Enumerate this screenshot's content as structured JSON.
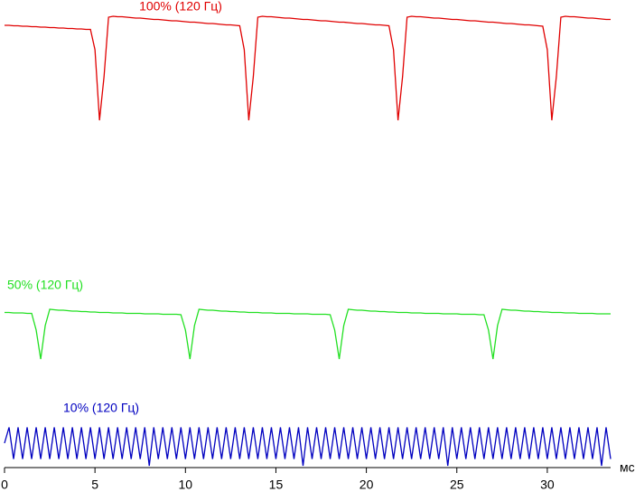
{
  "chart_data": {
    "type": "line",
    "x_unit": "мс",
    "x": [
      0,
      0.25,
      0.5,
      0.75,
      1,
      1.25,
      1.5,
      1.75,
      2,
      2.25,
      2.5,
      2.75,
      3,
      3.25,
      3.5,
      3.75,
      4,
      4.25,
      4.5,
      4.75,
      5,
      5.25,
      5.5,
      5.75,
      6,
      6.25,
      6.5,
      6.75,
      7,
      7.25,
      7.5,
      7.75,
      8,
      8.25,
      8.5,
      8.75,
      9,
      9.25,
      9.5,
      9.75,
      10,
      10.25,
      10.5,
      10.75,
      11,
      11.25,
      11.5,
      11.75,
      12,
      12.25,
      12.5,
      12.75,
      13,
      13.25,
      13.5,
      13.75,
      14,
      14.25,
      14.5,
      14.75,
      15,
      15.25,
      15.5,
      15.75,
      16,
      16.25,
      16.5,
      16.75,
      17,
      17.25,
      17.5,
      17.75,
      18,
      18.25,
      18.5,
      18.75,
      19,
      19.25,
      19.5,
      19.75,
      20,
      20.25,
      20.5,
      20.75,
      21,
      21.25,
      21.5,
      21.75,
      22,
      22.25,
      22.5,
      22.75,
      23,
      23.25,
      23.5,
      23.75,
      24,
      24.25,
      24.5,
      24.75,
      25,
      25.25,
      25.5,
      25.75,
      26,
      26.25,
      26.5,
      26.75,
      27,
      27.25,
      27.5,
      27.75,
      28,
      28.25,
      28.5,
      28.75,
      29,
      29.25,
      29.5,
      29.75,
      30,
      30.25,
      30.5,
      30.75,
      31,
      31.25,
      31.5,
      31.75,
      32,
      32.25,
      32.5,
      32.75,
      33,
      33.25,
      33.5
    ],
    "series": [
      {
        "name": "100% (120 Гц)",
        "color": "#e00000",
        "values": [
          97.4,
          97.4,
          97.3,
          97.3,
          97.2,
          97.2,
          97.1,
          97.1,
          97.0,
          97.0,
          96.9,
          96.9,
          96.8,
          96.8,
          96.7,
          96.7,
          96.6,
          96.6,
          96.5,
          96.5,
          92,
          76.4,
          86,
          99.2,
          99.4,
          99.3,
          99.3,
          99.2,
          99.1,
          99.0,
          99.0,
          98.9,
          98.8,
          98.7,
          98.7,
          98.6,
          98.5,
          98.4,
          98.4,
          98.3,
          98.2,
          98.1,
          98.1,
          98.0,
          97.9,
          97.8,
          97.8,
          97.7,
          97.6,
          97.5,
          97.5,
          97.4,
          97.3,
          92,
          76.4,
          86,
          99.2,
          99.4,
          99.3,
          99.3,
          99.2,
          99.1,
          99.0,
          99.0,
          98.9,
          98.8,
          98.7,
          98.7,
          98.6,
          98.5,
          98.4,
          98.4,
          98.3,
          98.2,
          98.1,
          98.1,
          98.0,
          97.9,
          97.8,
          97.8,
          97.7,
          97.6,
          97.5,
          97.5,
          97.4,
          97.3,
          92,
          76.4,
          86,
          99.2,
          99.4,
          99.3,
          99.3,
          99.2,
          99.1,
          99.0,
          99.0,
          98.9,
          98.8,
          98.7,
          98.7,
          98.6,
          98.5,
          98.4,
          98.4,
          98.3,
          98.2,
          98.1,
          98.1,
          98.0,
          97.9,
          97.8,
          97.8,
          97.7,
          97.6,
          97.5,
          97.5,
          97.4,
          97.3,
          97.2,
          92,
          76.4,
          86,
          99.2,
          99.4,
          99.3,
          99.3,
          99.2,
          99.1,
          99.0,
          99.0,
          98.9,
          98.8,
          98.7,
          98.7
        ]
      },
      {
        "name": "50% (120 Гц)",
        "color": "#22e022",
        "values": [
          33.9,
          33.9,
          33.8,
          33.8,
          33.8,
          33.7,
          33.7,
          30,
          23.6,
          31,
          34.6,
          34.5,
          34.4,
          34.4,
          34.3,
          34.2,
          34.2,
          34.1,
          34.1,
          34.0,
          34.0,
          33.9,
          33.9,
          33.9,
          33.8,
          33.8,
          33.8,
          33.7,
          33.7,
          33.7,
          33.7,
          33.6,
          33.6,
          33.6,
          33.6,
          33.5,
          33.5,
          33.5,
          33.5,
          33.4,
          30,
          23.6,
          31,
          34.6,
          34.5,
          34.4,
          34.4,
          34.3,
          34.2,
          34.2,
          34.1,
          34.1,
          34.0,
          34.0,
          33.9,
          33.9,
          33.9,
          33.8,
          33.8,
          33.8,
          33.7,
          33.7,
          33.7,
          33.7,
          33.6,
          33.6,
          33.6,
          33.6,
          33.5,
          33.5,
          33.5,
          33.5,
          33.4,
          30,
          23.6,
          31,
          34.6,
          34.5,
          34.4,
          34.4,
          34.3,
          34.2,
          34.2,
          34.1,
          34.1,
          34.0,
          34.0,
          33.9,
          33.9,
          33.9,
          33.8,
          33.8,
          33.8,
          33.7,
          33.7,
          33.7,
          33.7,
          33.6,
          33.6,
          33.6,
          33.6,
          33.5,
          33.5,
          33.5,
          33.5,
          33.4,
          33.4,
          30,
          23.6,
          31,
          34.6,
          34.5,
          34.4,
          34.4,
          34.3,
          34.2,
          34.2,
          34.1,
          34.1,
          34.0,
          34.0,
          33.9,
          33.9,
          33.9,
          33.8,
          33.8,
          33.8,
          33.7,
          33.7,
          33.7,
          33.7,
          33.6,
          33.6,
          33.6,
          33.6
        ]
      },
      {
        "name": "10% (120 Гц)",
        "color": "#0000c0",
        "values": [
          5,
          8.5,
          1.5,
          8.5,
          1.5,
          8.5,
          1.5,
          8.5,
          1.5,
          8.5,
          1.5,
          8.5,
          1.5,
          8.5,
          1.5,
          8.5,
          1.5,
          8.5,
          1.5,
          8.5,
          1.5,
          8.5,
          1.5,
          8.5,
          1.5,
          8.5,
          1.5,
          8.5,
          1.5,
          8.5,
          1.5,
          8.5,
          0,
          8.5,
          1.5,
          8.5,
          1.5,
          8.5,
          1.5,
          8.5,
          1.5,
          8.5,
          1.5,
          8.5,
          1.5,
          8.5,
          1.5,
          8.5,
          1.5,
          8.5,
          1.5,
          8.5,
          1.5,
          8.5,
          1.5,
          8.5,
          1.5,
          8.5,
          1.5,
          8.5,
          1.5,
          8.5,
          1.5,
          8.5,
          1.5,
          8.5,
          0,
          8.5,
          1.5,
          8.5,
          1.5,
          8.5,
          1.5,
          8.5,
          1.5,
          8.5,
          1.5,
          8.5,
          1.5,
          8.5,
          1.5,
          8.5,
          1.5,
          8.5,
          1.5,
          8.5,
          1.5,
          8.5,
          1.5,
          8.5,
          1.5,
          8.5,
          1.5,
          8.5,
          1.5,
          8.5,
          1.5,
          8.5,
          0,
          8.5,
          1.5,
          8.5,
          1.5,
          8.5,
          1.5,
          8.5,
          1.5,
          8.5,
          1.5,
          8.5,
          1.5,
          8.5,
          1.5,
          8.5,
          1.5,
          8.5,
          1.5,
          8.5,
          1.5,
          8.5,
          1.5,
          8.5,
          1.5,
          8.5,
          1.5,
          8.5,
          1.5,
          8.5,
          1.5,
          8.5,
          1.5,
          8.5,
          0,
          8.5,
          1.5
        ]
      }
    ],
    "xlim": [
      0,
      33.5
    ],
    "xticks": [
      0,
      5,
      10,
      15,
      20,
      25,
      30
    ],
    "ylim": [
      0,
      100
    ]
  }
}
